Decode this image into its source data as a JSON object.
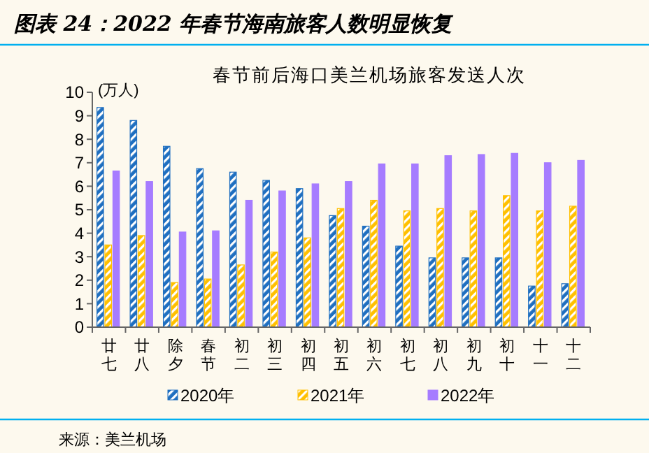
{
  "chart_data": {
    "type": "bar",
    "title": "图表 24：2022 年春节海南旅客人数明显恢复",
    "subtitle": "春节前后海口美兰机场旅客发送人次",
    "ylabel": "(万人)",
    "annotations": [
      "来源：美兰机场"
    ],
    "categories": [
      "廿七",
      "廿八",
      "除夕",
      "春节",
      "初二",
      "初三",
      "初四",
      "初五",
      "初六",
      "初七",
      "初八",
      "初九",
      "初十",
      "十一",
      "十二"
    ],
    "series": [
      {
        "name": "2020年",
        "color": "#1f6fc0",
        "values": [
          9.35,
          8.8,
          7.7,
          6.75,
          6.6,
          6.25,
          5.9,
          4.75,
          4.3,
          3.45,
          2.95,
          2.95,
          2.95,
          1.75,
          1.85
        ]
      },
      {
        "name": "2021年",
        "color": "#ffc000",
        "values": [
          3.5,
          3.9,
          1.9,
          2.05,
          2.65,
          3.2,
          3.8,
          5.05,
          5.4,
          4.95,
          5.05,
          4.95,
          5.6,
          4.95,
          5.15
        ]
      },
      {
        "name": "2022年",
        "color": "#a67cff",
        "values": [
          6.65,
          6.2,
          4.05,
          4.1,
          5.4,
          5.8,
          6.1,
          6.2,
          6.95,
          6.95,
          7.3,
          7.35,
          7.4,
          7.0,
          7.1
        ]
      }
    ],
    "ylim": [
      0,
      10
    ],
    "yticks": [
      0,
      1,
      2,
      3,
      4,
      5,
      6,
      7,
      8,
      9,
      10
    ],
    "grid": false,
    "legend": "bottom"
  }
}
